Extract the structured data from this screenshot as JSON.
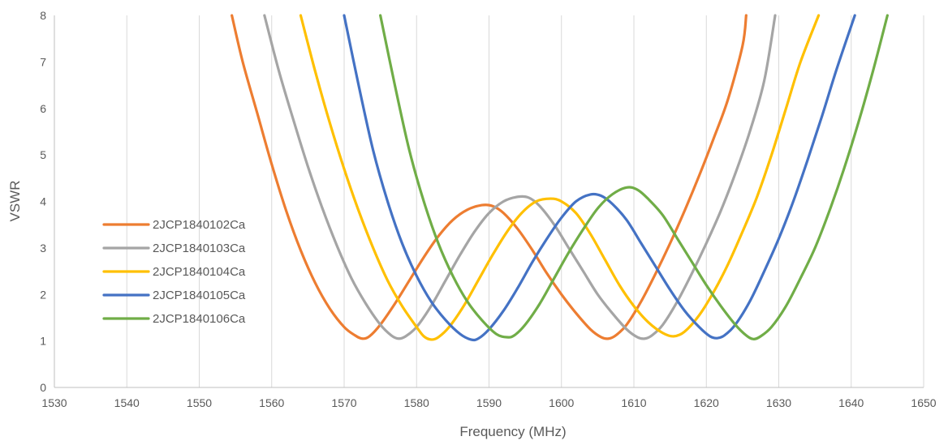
{
  "chart_data": {
    "type": "line",
    "title": "",
    "xlabel": "Frequency (MHz)",
    "ylabel": "VSWR",
    "xlim": [
      1530,
      1650
    ],
    "ylim": [
      0,
      8
    ],
    "x_ticks": [
      "1530",
      "1540",
      "1550",
      "1560",
      "1570",
      "1580",
      "1590",
      "1600",
      "1610",
      "1620",
      "1630",
      "1640",
      "1650"
    ],
    "y_ticks": [
      "0",
      "1",
      "2",
      "3",
      "4",
      "5",
      "6",
      "7",
      "8"
    ],
    "grid": "vertical",
    "legend_position": "left-inside",
    "series": [
      {
        "name": "2JCP1840102Ca",
        "color": "#ED7D31",
        "points": [
          [
            1554.5,
            8
          ],
          [
            1556,
            7
          ],
          [
            1558,
            5.9
          ],
          [
            1560,
            4.8
          ],
          [
            1562,
            3.8
          ],
          [
            1564,
            2.95
          ],
          [
            1566,
            2.25
          ],
          [
            1568,
            1.7
          ],
          [
            1570,
            1.3
          ],
          [
            1571.5,
            1.12
          ],
          [
            1572.5,
            1.05
          ],
          [
            1573.5,
            1.1
          ],
          [
            1575,
            1.35
          ],
          [
            1577,
            1.8
          ],
          [
            1579,
            2.3
          ],
          [
            1581,
            2.8
          ],
          [
            1583,
            3.25
          ],
          [
            1585,
            3.6
          ],
          [
            1587,
            3.82
          ],
          [
            1589,
            3.92
          ],
          [
            1590.5,
            3.9
          ],
          [
            1592,
            3.75
          ],
          [
            1594,
            3.4
          ],
          [
            1596,
            2.95
          ],
          [
            1598,
            2.45
          ],
          [
            1600,
            2
          ],
          [
            1602,
            1.6
          ],
          [
            1604,
            1.25
          ],
          [
            1605.5,
            1.08
          ],
          [
            1606.5,
            1.05
          ],
          [
            1607.5,
            1.12
          ],
          [
            1609,
            1.35
          ],
          [
            1611,
            1.85
          ],
          [
            1613,
            2.45
          ],
          [
            1615,
            3.1
          ],
          [
            1617,
            3.8
          ],
          [
            1619,
            4.55
          ],
          [
            1621,
            5.35
          ],
          [
            1623,
            6.2
          ],
          [
            1625,
            7.35
          ],
          [
            1625.5,
            8
          ]
        ]
      },
      {
        "name": "2JCP1840103Ca",
        "color": "#A5A5A5",
        "points": [
          [
            1559,
            8
          ],
          [
            1561,
            6.8
          ],
          [
            1563,
            5.75
          ],
          [
            1565,
            4.75
          ],
          [
            1567,
            3.85
          ],
          [
            1569,
            3.05
          ],
          [
            1571,
            2.35
          ],
          [
            1573,
            1.8
          ],
          [
            1575,
            1.35
          ],
          [
            1576.5,
            1.12
          ],
          [
            1577.5,
            1.05
          ],
          [
            1578.5,
            1.1
          ],
          [
            1580,
            1.3
          ],
          [
            1582,
            1.75
          ],
          [
            1584,
            2.3
          ],
          [
            1586,
            2.85
          ],
          [
            1588,
            3.35
          ],
          [
            1590,
            3.75
          ],
          [
            1592,
            4
          ],
          [
            1594,
            4.1
          ],
          [
            1595.5,
            4.08
          ],
          [
            1597,
            3.9
          ],
          [
            1599,
            3.5
          ],
          [
            1601,
            3
          ],
          [
            1603,
            2.5
          ],
          [
            1605,
            2
          ],
          [
            1607,
            1.6
          ],
          [
            1609,
            1.25
          ],
          [
            1610.5,
            1.08
          ],
          [
            1611.5,
            1.05
          ],
          [
            1612.5,
            1.12
          ],
          [
            1614,
            1.35
          ],
          [
            1616,
            1.85
          ],
          [
            1618,
            2.45
          ],
          [
            1620,
            3.1
          ],
          [
            1622,
            3.8
          ],
          [
            1624,
            4.6
          ],
          [
            1626,
            5.5
          ],
          [
            1628,
            6.6
          ],
          [
            1629.5,
            8
          ]
        ]
      },
      {
        "name": "2JCP1840104Ca",
        "color": "#FFC000",
        "points": [
          [
            1564,
            8
          ],
          [
            1566,
            6.8
          ],
          [
            1568,
            5.7
          ],
          [
            1570,
            4.7
          ],
          [
            1572,
            3.8
          ],
          [
            1574,
            3
          ],
          [
            1576,
            2.3
          ],
          [
            1578,
            1.75
          ],
          [
            1580,
            1.3
          ],
          [
            1581,
            1.1
          ],
          [
            1582,
            1.03
          ],
          [
            1583,
            1.08
          ],
          [
            1584.5,
            1.3
          ],
          [
            1586.5,
            1.75
          ],
          [
            1588.5,
            2.3
          ],
          [
            1590.5,
            2.85
          ],
          [
            1592.5,
            3.35
          ],
          [
            1594.5,
            3.75
          ],
          [
            1596.5,
            4
          ],
          [
            1598.5,
            4.06
          ],
          [
            1600,
            4
          ],
          [
            1602,
            3.75
          ],
          [
            1604,
            3.3
          ],
          [
            1606,
            2.75
          ],
          [
            1608,
            2.2
          ],
          [
            1610,
            1.75
          ],
          [
            1612,
            1.4
          ],
          [
            1614,
            1.17
          ],
          [
            1615.5,
            1.1
          ],
          [
            1617,
            1.2
          ],
          [
            1619,
            1.55
          ],
          [
            1621,
            2.05
          ],
          [
            1623,
            2.65
          ],
          [
            1625,
            3.35
          ],
          [
            1627,
            4.1
          ],
          [
            1629,
            5
          ],
          [
            1631,
            6
          ],
          [
            1633,
            7
          ],
          [
            1635.5,
            8
          ]
        ]
      },
      {
        "name": "2JCP1840105Ca",
        "color": "#4472C4",
        "points": [
          [
            1570,
            8
          ],
          [
            1572,
            6.5
          ],
          [
            1574,
            5.1
          ],
          [
            1576,
            4
          ],
          [
            1578,
            3.1
          ],
          [
            1580,
            2.4
          ],
          [
            1582,
            1.85
          ],
          [
            1584,
            1.45
          ],
          [
            1586,
            1.15
          ],
          [
            1587.5,
            1.03
          ],
          [
            1588.5,
            1.05
          ],
          [
            1590,
            1.25
          ],
          [
            1592,
            1.65
          ],
          [
            1594,
            2.15
          ],
          [
            1596,
            2.7
          ],
          [
            1598,
            3.2
          ],
          [
            1600,
            3.65
          ],
          [
            1602,
            4
          ],
          [
            1604,
            4.15
          ],
          [
            1605.5,
            4.12
          ],
          [
            1607,
            3.95
          ],
          [
            1609,
            3.6
          ],
          [
            1611,
            3.1
          ],
          [
            1613,
            2.6
          ],
          [
            1615,
            2.1
          ],
          [
            1617,
            1.65
          ],
          [
            1619,
            1.3
          ],
          [
            1620.5,
            1.1
          ],
          [
            1621.5,
            1.06
          ],
          [
            1622.5,
            1.12
          ],
          [
            1624,
            1.35
          ],
          [
            1626,
            1.85
          ],
          [
            1628,
            2.5
          ],
          [
            1630,
            3.2
          ],
          [
            1632,
            4
          ],
          [
            1634,
            4.9
          ],
          [
            1636,
            5.85
          ],
          [
            1638,
            6.85
          ],
          [
            1640.5,
            8
          ]
        ]
      },
      {
        "name": "2JCP1840106Ca",
        "color": "#70AD47",
        "points": [
          [
            1575,
            8
          ],
          [
            1577,
            6.5
          ],
          [
            1579,
            5.1
          ],
          [
            1581,
            4
          ],
          [
            1583,
            3.1
          ],
          [
            1585,
            2.4
          ],
          [
            1587,
            1.85
          ],
          [
            1589,
            1.45
          ],
          [
            1591,
            1.15
          ],
          [
            1592.5,
            1.08
          ],
          [
            1593.5,
            1.12
          ],
          [
            1595,
            1.35
          ],
          [
            1597,
            1.8
          ],
          [
            1599,
            2.35
          ],
          [
            1601,
            2.9
          ],
          [
            1603,
            3.4
          ],
          [
            1605,
            3.85
          ],
          [
            1607,
            4.15
          ],
          [
            1609,
            4.3
          ],
          [
            1610.5,
            4.25
          ],
          [
            1612,
            4.05
          ],
          [
            1614,
            3.7
          ],
          [
            1616,
            3.2
          ],
          [
            1618,
            2.7
          ],
          [
            1620,
            2.2
          ],
          [
            1622,
            1.75
          ],
          [
            1624,
            1.35
          ],
          [
            1625.5,
            1.12
          ],
          [
            1626.5,
            1.04
          ],
          [
            1627.5,
            1.1
          ],
          [
            1629,
            1.3
          ],
          [
            1631,
            1.75
          ],
          [
            1633,
            2.35
          ],
          [
            1635,
            3
          ],
          [
            1637,
            3.8
          ],
          [
            1639,
            4.7
          ],
          [
            1641,
            5.7
          ],
          [
            1643,
            6.8
          ],
          [
            1645,
            8
          ]
        ]
      }
    ]
  }
}
